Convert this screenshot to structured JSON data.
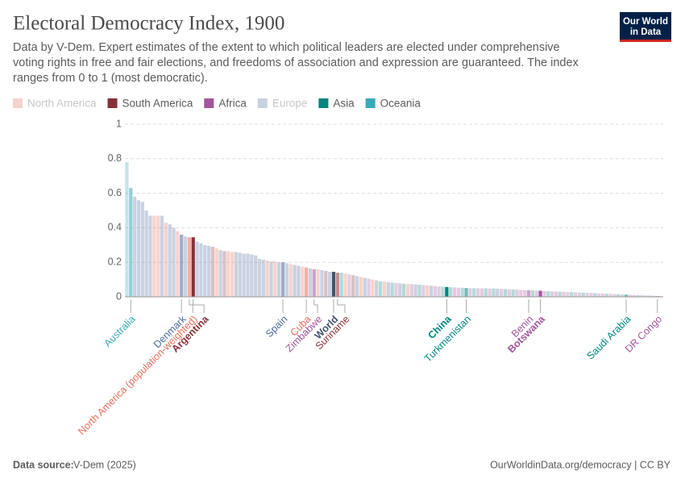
{
  "chart_data": {
    "type": "bar",
    "title": "Electoral Democracy Index, 1900",
    "subtitle": "Data by V-Dem. Expert estimates of the extent to which political leaders are elected under comprehensive voting rights in free and fair elections, and freedoms of association and expression are guaranteed. The index ranges from 0 to 1 (most democratic).",
    "logo": [
      "Our World",
      "in Data"
    ],
    "source_label": "Data source:",
    "source": "V-Dem (2025)",
    "credit": "OurWorldinData.org/democracy | CC BY",
    "legend": [
      {
        "name": "North America",
        "color": "#e56e5a",
        "faded": true
      },
      {
        "name": "South America",
        "color": "#883039",
        "faded": false
      },
      {
        "name": "Africa",
        "color": "#a2559c",
        "faded": false
      },
      {
        "name": "Europe",
        "color": "#4c6a9c",
        "faded": true
      },
      {
        "name": "Asia",
        "color": "#00847e",
        "faded": false
      },
      {
        "name": "Oceania",
        "color": "#38aaba",
        "faded": false
      }
    ],
    "highlighted": [
      "Argentina",
      "World",
      "China",
      "Botswana"
    ],
    "ylim": [
      0,
      1
    ],
    "yticks": [
      0,
      0.2,
      0.4,
      0.6,
      0.8,
      1
    ],
    "grid": true,
    "categories": [
      null,
      "Australia",
      null,
      null,
      null,
      null,
      null,
      null,
      null,
      null,
      null,
      null,
      null,
      null,
      "Denmark",
      null,
      "North America (population-weighted)",
      "Argentina",
      null,
      null,
      null,
      null,
      null,
      null,
      null,
      null,
      null,
      null,
      null,
      null,
      null,
      null,
      null,
      null,
      null,
      null,
      null,
      null,
      null,
      null,
      "Spain",
      null,
      null,
      null,
      null,
      null,
      "Cuba",
      null,
      "Zimbabwe",
      null,
      null,
      null,
      null,
      "World",
      "Suriname",
      null,
      null,
      null,
      null,
      null,
      null,
      null,
      null,
      null,
      null,
      null,
      null,
      null,
      null,
      null,
      null,
      null,
      null,
      null,
      null,
      null,
      null,
      null,
      null,
      null,
      null,
      null,
      "China",
      null,
      null,
      null,
      null,
      "Turkmenistan",
      null,
      null,
      null,
      null,
      null,
      null,
      null,
      null,
      null,
      null,
      null,
      null,
      null,
      null,
      null,
      "Benin",
      null,
      null,
      "Botswana",
      null,
      null,
      null,
      null,
      null,
      null,
      null,
      null,
      null,
      null,
      null,
      null,
      null,
      null,
      null,
      null,
      null,
      null,
      null,
      null,
      null,
      "Saudi Arabia",
      null,
      null,
      null,
      null,
      null,
      null,
      null,
      "DR Congo",
      null
    ],
    "values": [
      0.78,
      0.63,
      0.58,
      0.56,
      0.55,
      0.5,
      0.47,
      0.47,
      0.47,
      0.47,
      0.43,
      0.42,
      0.4,
      0.38,
      0.36,
      0.35,
      0.345,
      0.345,
      0.32,
      0.31,
      0.3,
      0.295,
      0.29,
      0.28,
      0.27,
      0.265,
      0.265,
      0.26,
      0.26,
      0.255,
      0.25,
      0.25,
      0.245,
      0.24,
      0.22,
      0.215,
      0.21,
      0.205,
      0.205,
      0.2,
      0.2,
      0.195,
      0.19,
      0.185,
      0.18,
      0.175,
      0.17,
      0.165,
      0.16,
      0.16,
      0.155,
      0.15,
      0.145,
      0.145,
      0.14,
      0.14,
      0.135,
      0.13,
      0.125,
      0.12,
      0.115,
      0.11,
      0.105,
      0.1,
      0.095,
      0.09,
      0.088,
      0.085,
      0.082,
      0.08,
      0.078,
      0.076,
      0.075,
      0.074,
      0.072,
      0.07,
      0.068,
      0.066,
      0.064,
      0.062,
      0.06,
      0.058,
      0.057,
      0.055,
      0.054,
      0.053,
      0.052,
      0.051,
      0.05,
      0.05,
      0.05,
      0.049,
      0.049,
      0.048,
      0.048,
      0.047,
      0.046,
      0.045,
      0.044,
      0.043,
      0.042,
      0.04,
      0.039,
      0.038,
      0.037,
      0.036,
      0.035,
      0.034,
      0.033,
      0.032,
      0.031,
      0.03,
      0.029,
      0.028,
      0.027,
      0.026,
      0.025,
      0.024,
      0.023,
      0.022,
      0.021,
      0.02,
      0.019,
      0.018,
      0.017,
      0.016,
      0.015,
      0.014,
      0.013,
      0.012,
      0.011,
      0.01,
      0.009,
      0.008,
      0.007,
      0.006,
      0.005,
      0.004
    ],
    "colors": [
      "#38aaba",
      "#38aaba",
      "#4c6a9c",
      "#4c6a9c",
      "#4c6a9c",
      "#4c6a9c",
      "#4c6a9c",
      "#e56e5a",
      "#e56e5a",
      "#4c6a9c",
      "#e56e5a",
      "#4c6a9c",
      "#4c6a9c",
      "#e56e5a",
      "#4c6a9c",
      "#4c6a9c",
      "#e56e5a",
      "#883039",
      "#4c6a9c",
      "#4c6a9c",
      "#4c6a9c",
      "#4c6a9c",
      "#883039",
      "#e56e5a",
      "#4c6a9c",
      "#883039",
      "#e56e5a",
      "#e56e5a",
      "#4c6a9c",
      "#4c6a9c",
      "#4c6a9c",
      "#4c6a9c",
      "#4c6a9c",
      "#4c6a9c",
      "#4c6a9c",
      "#4c6a9c",
      "#e56e5a",
      "#4c6a9c",
      "#e56e5a",
      "#4c6a9c",
      "#4c6a9c",
      "#4c6a9c",
      "#e56e5a",
      "#4c6a9c",
      "#4c6a9c",
      "#e56e5a",
      "#e56e5a",
      "#4c6a9c",
      "#a2559c",
      "#e56e5a",
      "#4c6a9c",
      "#883039",
      "#4c6a9c",
      "#44546e",
      "#883039",
      "#00847e",
      "#e56e5a",
      "#a2559c",
      "#883039",
      "#4c6a9c",
      "#e56e5a",
      "#4c6a9c",
      "#a2559c",
      "#e56e5a",
      "#4c6a9c",
      "#00847e",
      "#e56e5a",
      "#4c6a9c",
      "#00847e",
      "#a2559c",
      "#4c6a9c",
      "#00847e",
      "#e56e5a",
      "#a2559c",
      "#4c6a9c",
      "#00847e",
      "#a2559c",
      "#e56e5a",
      "#4c6a9c",
      "#a2559c",
      "#a2559c",
      "#00847e",
      "#00847e",
      "#00847e",
      "#a2559c",
      "#a2559c",
      "#00847e",
      "#00847e",
      "#a2559c",
      "#00847e",
      "#a2559c",
      "#a2559c",
      "#00847e",
      "#a2559c",
      "#00847e",
      "#4c6a9c",
      "#a2559c",
      "#00847e",
      "#a2559c",
      "#00847e",
      "#a2559c",
      "#a2559c",
      "#a2559c",
      "#a2559c",
      "#00847e",
      "#a2559c",
      "#a2559c",
      "#a2559c",
      "#00847e",
      "#a2559c",
      "#a2559c",
      "#00847e",
      "#a2559c",
      "#a2559c",
      "#00847e",
      "#a2559c",
      "#a2559c",
      "#00847e",
      "#a2559c",
      "#a2559c",
      "#00847e",
      "#a2559c",
      "#a2559c",
      "#00847e",
      "#a2559c",
      "#a2559c",
      "#00847e",
      "#a2559c",
      "#00847e",
      "#a2559c",
      "#a2559c",
      "#00847e",
      "#a2559c",
      "#a2559c",
      "#00847e",
      "#a2559c",
      "#a2559c",
      "#a2559c"
    ]
  }
}
